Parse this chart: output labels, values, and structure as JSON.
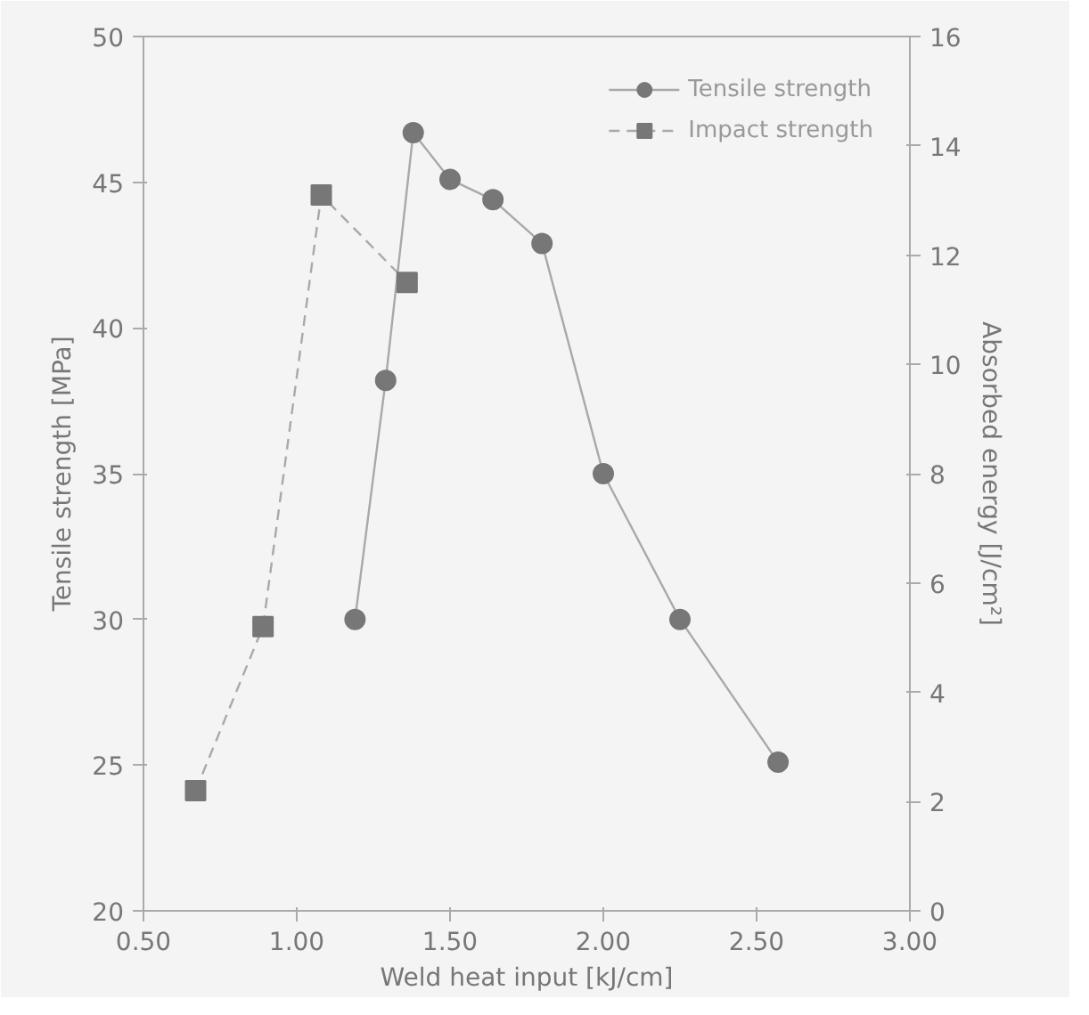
{
  "chart_data": {
    "type": "line",
    "xlabel": "Weld heat input [kJ/cm]",
    "ylabel": "Tensile strength [MPa]",
    "y2label": "Absorbed energy [J/cm²]",
    "xlim": [
      0.5,
      3.0
    ],
    "xticks": [
      {
        "value": 0.5,
        "label": "0.50"
      },
      {
        "value": 1.0,
        "label": "1.00"
      },
      {
        "value": 1.5,
        "label": "1.50"
      },
      {
        "value": 2.0,
        "label": "2.00"
      },
      {
        "value": 2.5,
        "label": "2.50"
      },
      {
        "value": 3.0,
        "label": "3.00"
      }
    ],
    "ylim": [
      20,
      50
    ],
    "yticks": [
      20,
      25,
      30,
      35,
      40,
      45,
      50
    ],
    "y2lim": [
      0,
      16
    ],
    "y2ticks": [
      0,
      2,
      4,
      6,
      8,
      10,
      12,
      14,
      16
    ],
    "grid": false,
    "legend": "top right",
    "series": [
      {
        "name": "Tensile strength",
        "color": "#777777",
        "marker": "circle",
        "line_style": "solid",
        "x": [
          1.19,
          1.29,
          1.38,
          1.5,
          1.64,
          1.8,
          2.0,
          2.25,
          2.57
        ],
        "values": [
          30.0,
          38.2,
          46.7,
          45.1,
          44.4,
          42.9,
          35.0,
          30.0,
          25.1
        ]
      },
      {
        "name": "Impact strength",
        "color": "#777777",
        "marker": "square",
        "line_style": "dashed",
        "axis": "y2",
        "x": [
          0.67,
          0.89,
          1.08,
          1.36
        ],
        "values": [
          2.2,
          5.2,
          13.1,
          11.5
        ]
      }
    ]
  }
}
